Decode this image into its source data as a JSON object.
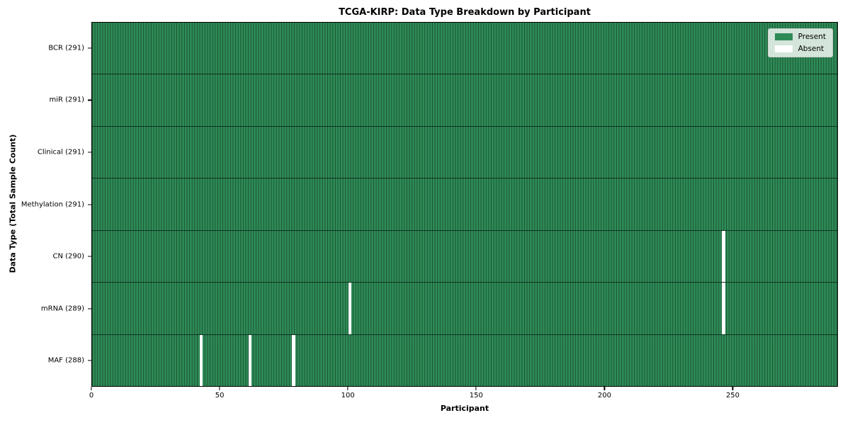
{
  "figure": {
    "background": "#ffffff"
  },
  "chart_data": {
    "type": "heatmap",
    "title": "TCGA-KIRP: Data Type Breakdown by Participant",
    "xlabel": "Participant",
    "ylabel": "Data Type (Total Sample Count)",
    "n_participants": 291,
    "xlim": [
      0,
      291
    ],
    "x_ticks": [
      0,
      50,
      100,
      150,
      200,
      250
    ],
    "grid": false,
    "colors": {
      "present": "#2e8b57",
      "absent": "#ffffff",
      "cell_edge": "rgba(0,0,0,0.42)",
      "row_separator": "rgba(0,0,0,0.60)",
      "plot_border": "#000000"
    },
    "legend": {
      "position": "upper right",
      "entries": [
        {
          "label": "Present",
          "color": "#2e8b57"
        },
        {
          "label": "Absent",
          "color": "#ffffff"
        }
      ]
    },
    "rows": [
      {
        "name": "BCR",
        "count": 291,
        "label": "BCR (291)",
        "absent_participants": []
      },
      {
        "name": "miR",
        "count": 291,
        "label": "miR (291)",
        "absent_participants": []
      },
      {
        "name": "Clinical",
        "count": 291,
        "label": "Clinical (291)",
        "absent_participants": []
      },
      {
        "name": "Methylation",
        "count": 291,
        "label": "Methylation (291)",
        "absent_participants": []
      },
      {
        "name": "CN",
        "count": 290,
        "label": "CN (290)",
        "absent_participants": [
          246
        ]
      },
      {
        "name": "mRNA",
        "count": 289,
        "label": "mRNA (289)",
        "absent_participants": [
          100,
          246
        ]
      },
      {
        "name": "MAF",
        "count": 288,
        "label": "MAF (288)",
        "absent_participants": [
          42,
          61,
          78
        ]
      }
    ]
  }
}
